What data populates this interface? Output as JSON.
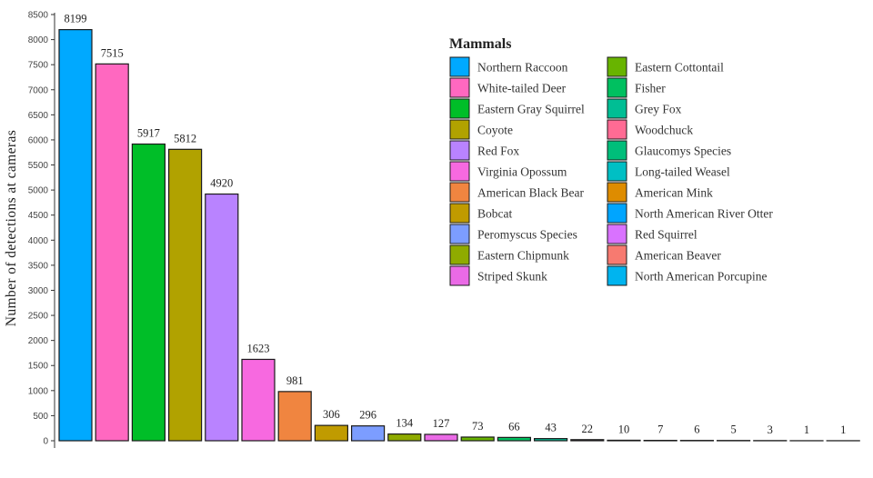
{
  "chart_data": {
    "type": "bar",
    "title": "",
    "xlabel": "",
    "ylabel": "Number of detections at cameras",
    "ylim": [
      0,
      8500
    ],
    "yticks": [
      0,
      500,
      1000,
      1500,
      2000,
      2500,
      3000,
      3500,
      4000,
      4500,
      5000,
      5500,
      6000,
      6500,
      7000,
      7500,
      8000,
      8500
    ],
    "grid": false,
    "legend_title": "Mammals",
    "legend_position": "top-right",
    "categories": [
      "Northern Raccoon",
      "White-tailed Deer",
      "Eastern Gray Squirrel",
      "Coyote",
      "Red Fox",
      "Virginia Opossum",
      "American Black Bear",
      "Bobcat",
      "Peromyscus Species",
      "Eastern Chipmunk",
      "Striped Skunk",
      "Eastern Cottontail",
      "Fisher",
      "Grey Fox",
      "Woodchuck",
      "Glaucomys Species",
      "Long-tailed Weasel",
      "American Mink",
      "North American River Otter",
      "Red Squirrel",
      "American Beaver",
      "North American Porcupine"
    ],
    "values": [
      8199,
      7515,
      5917,
      5812,
      4920,
      1623,
      981,
      306,
      296,
      134,
      127,
      73,
      66,
      43,
      22,
      10,
      7,
      6,
      5,
      3,
      1,
      1
    ],
    "colors": [
      "#00a9ff",
      "#ff68c0",
      "#00be28",
      "#b1a200",
      "#b983ff",
      "#f769e0",
      "#f08540",
      "#c09b00",
      "#7c9dff",
      "#8fab00",
      "#ea6ae6",
      "#68b400",
      "#00c060",
      "#00be94",
      "#ff6b94",
      "#00be7a",
      "#00bfc4",
      "#de8c00",
      "#00a5ff",
      "#d972ff",
      "#f77a70",
      "#00b4ef"
    ]
  }
}
